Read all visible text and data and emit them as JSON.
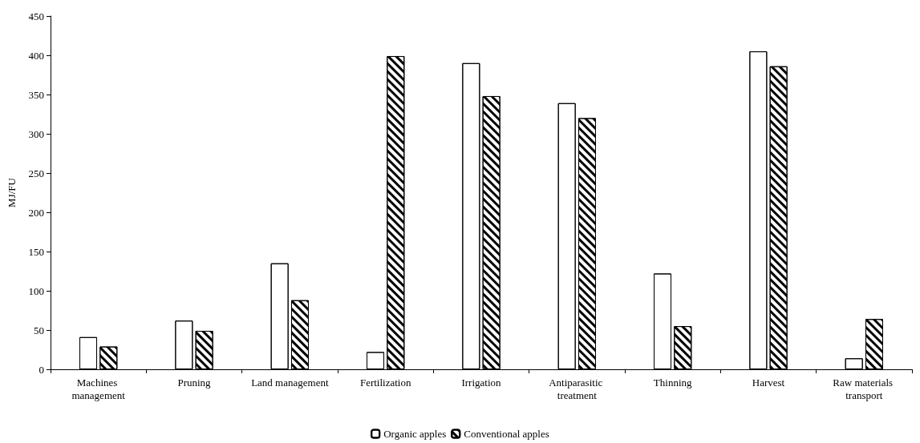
{
  "chart_data": {
    "type": "bar",
    "ylabel": "MJ/FU",
    "categories": [
      "Machines management",
      "Pruning",
      "Land management",
      "Fertilization",
      "Irrigation",
      "Antiparasitic treatment",
      "Thinning",
      "Harvest",
      "Raw materials transport"
    ],
    "series": [
      {
        "name": "Organic apples",
        "color": "#ffffff",
        "values": [
          41,
          62,
          135,
          22,
          390,
          339,
          122,
          405,
          14
        ]
      },
      {
        "name": "Conventional apples",
        "color": "#ffffff",
        "values": [
          29,
          49,
          88,
          399,
          348,
          320,
          55,
          386,
          64
        ]
      }
    ],
    "ylim": [
      0,
      450
    ],
    "yticks": [
      0,
      50,
      100,
      150,
      200,
      250,
      300,
      350,
      400,
      450
    ],
    "grid": false,
    "legend": "bottom"
  }
}
